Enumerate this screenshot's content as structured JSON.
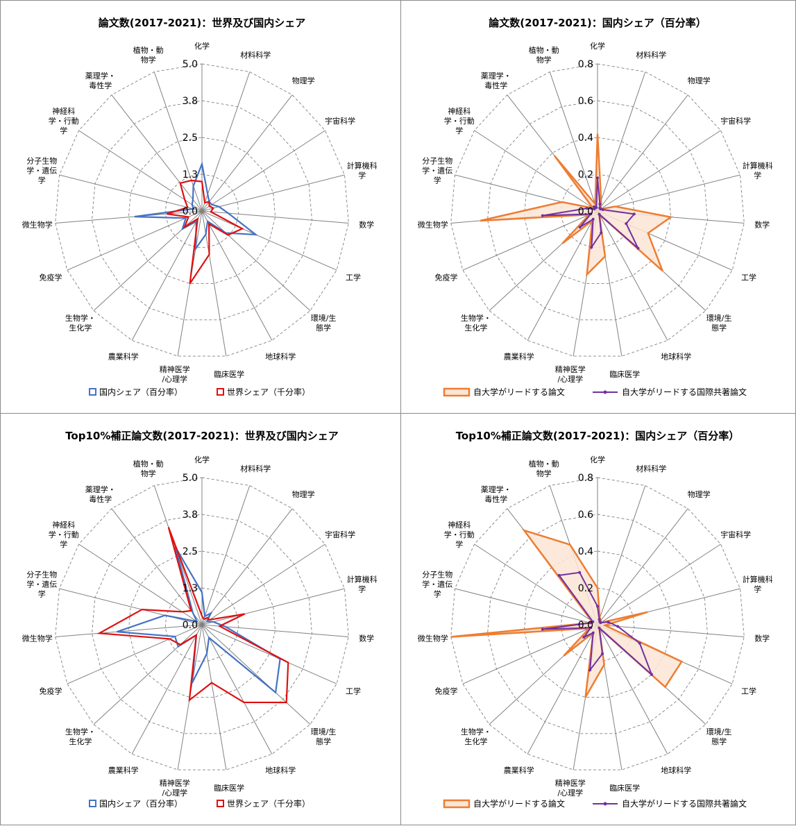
{
  "categories": [
    "化学",
    "材料科学",
    "物理学",
    "宇宙科学",
    "計算機科学",
    "数学",
    "工学",
    "環境/生態学",
    "地球科学",
    "臨床医学",
    "精神医学/心理学",
    "農業科学",
    "生物学・生化学",
    "免疫学",
    "微生物学",
    "分子生物学・遺伝学",
    "神経科学・行動学",
    "薬理学・毒性学",
    "植物・動物学"
  ],
  "category_lines": [
    [
      "化学"
    ],
    [
      "材料科学"
    ],
    [
      "物理学"
    ],
    [
      "宇宙科学"
    ],
    [
      "計算機科",
      "学"
    ],
    [
      "数学"
    ],
    [
      "工学"
    ],
    [
      "環境/生",
      "態学"
    ],
    [
      "地球科学"
    ],
    [
      "臨床医学"
    ],
    [
      "精神医学",
      "/心理学"
    ],
    [
      "農業科学"
    ],
    [
      "生物学・",
      "生化学"
    ],
    [
      "免疫学"
    ],
    [
      "微生物学"
    ],
    [
      "分子生物",
      "学・遺伝",
      "学"
    ],
    [
      "神経科",
      "学・行動",
      "学"
    ],
    [
      "薬理学・",
      "毒性学"
    ],
    [
      "植物・動",
      "物学"
    ]
  ],
  "legends": {
    "share": [
      "国内シェア（百分率）",
      "世界シェア（千分率）"
    ],
    "lead": [
      "自大学がリードする論文",
      "自大学がリードする国際共著論文"
    ]
  },
  "colors": {
    "domestic": "#4472c4",
    "world": "#e01010",
    "lead_line": "#ed7d31",
    "lead_fill": "#fbe5d6",
    "intl": "#7030a0",
    "grid": "#808080"
  },
  "chart_data": [
    {
      "type": "radar",
      "title": "論文数(2017-2021)：世界及び国内シェア",
      "rlim": [
        0,
        5.0
      ],
      "ticks": [
        "0.0",
        "1.3",
        "2.5",
        "3.8",
        "5.0"
      ],
      "tick_values": [
        0,
        1.25,
        2.5,
        3.75,
        5.0
      ],
      "legend_kind": "share",
      "series": [
        {
          "name": "国内シェア（百分率）",
          "style": "domestic",
          "values": [
            1.6,
            0.6,
            0.4,
            0.4,
            0.6,
            0.9,
            2.0,
            1.1,
            0.4,
            0.8,
            1.3,
            0.4,
            0.9,
            0.6,
            2.3,
            0.3,
            0.4,
            0.5,
            0.9
          ]
        },
        {
          "name": "世界シェア（千分率）",
          "style": "world",
          "values": [
            1.0,
            0.3,
            0.4,
            0.3,
            0.4,
            0.3,
            1.5,
            1.2,
            0.5,
            1.5,
            2.5,
            0.3,
            0.8,
            0.5,
            1.2,
            0.5,
            0.7,
            1.2,
            1.1
          ]
        }
      ]
    },
    {
      "type": "radar",
      "title": "論文数(2017-2021)：国内シェア（百分率）",
      "rlim": [
        0,
        0.8
      ],
      "ticks": [
        "0.0",
        "0.2",
        "0.4",
        "0.6",
        "0.8"
      ],
      "tick_values": [
        0,
        0.2,
        0.4,
        0.6,
        0.8
      ],
      "legend_kind": "lead",
      "series": [
        {
          "name": "自大学がリードする論文",
          "style": "lead",
          "values": [
            0.42,
            0.06,
            0.03,
            0.02,
            0.1,
            0.4,
            0.3,
            0.48,
            0.02,
            0.25,
            0.35,
            0.06,
            0.26,
            0.05,
            0.64,
            0.2,
            0.03,
            0.38,
            0.04
          ]
        },
        {
          "name": "自大学がリードする国際共著論文",
          "style": "intl",
          "values": [
            0.18,
            0.04,
            0.02,
            0.02,
            0.03,
            0.2,
            0.17,
            0.3,
            0.02,
            0.12,
            0.2,
            0.05,
            0.13,
            0.04,
            0.3,
            0.06,
            0.02,
            0.03,
            0.02
          ]
        }
      ]
    },
    {
      "type": "radar",
      "title": "Top10%補正論文数(2017-2021)：世界及び国内シェア",
      "rlim": [
        0,
        5.0
      ],
      "ticks": [
        "0.0",
        "1.3",
        "2.5",
        "3.8",
        "5.0"
      ],
      "tick_values": [
        0,
        1.25,
        2.5,
        3.75,
        5.0
      ],
      "legend_kind": "share",
      "series": [
        {
          "name": "国内シェア（百分率）",
          "style": "domestic",
          "values": [
            1.1,
            0.3,
            0.5,
            0.2,
            0.4,
            0.8,
            2.9,
            3.4,
            0.5,
            1.0,
            2.0,
            0.4,
            1.1,
            1.0,
            2.9,
            1.3,
            0.2,
            0.5,
            2.8
          ]
        },
        {
          "name": "世界シェア（千分率）",
          "style": "world",
          "values": [
            0.3,
            0.2,
            0.3,
            0.3,
            1.5,
            0.6,
            3.2,
            3.9,
            3.0,
            2.0,
            2.6,
            0.4,
            1.0,
            1.2,
            3.5,
            2.1,
            0.8,
            0.6,
            3.5
          ]
        }
      ]
    },
    {
      "type": "radar",
      "title": "Top10%補正論文数(2017-2021)：国内シェア（百分率）",
      "rlim": [
        0,
        0.8
      ],
      "ticks": [
        "0.0",
        "0.2",
        "0.4",
        "0.6",
        "0.8"
      ],
      "tick_values": [
        0,
        0.2,
        0.4,
        0.6,
        0.8
      ],
      "legend_kind": "lead",
      "series": [
        {
          "name": "自大学がリードする論文",
          "style": "lead",
          "values": [
            0.2,
            0.04,
            0.03,
            0.02,
            0.28,
            0.04,
            0.5,
            0.5,
            0.02,
            0.22,
            0.4,
            0.05,
            0.25,
            0.05,
            0.8,
            0.04,
            0.04,
            0.65,
            0.46
          ]
        },
        {
          "name": "自大学がリードする国際共著論文",
          "style": "intl",
          "values": [
            0.1,
            0.03,
            0.02,
            0.02,
            0.06,
            0.11,
            0.25,
            0.4,
            0.02,
            0.16,
            0.25,
            0.05,
            0.1,
            0.04,
            0.3,
            0.04,
            0.03,
            0.34,
            0.3
          ]
        }
      ]
    }
  ]
}
